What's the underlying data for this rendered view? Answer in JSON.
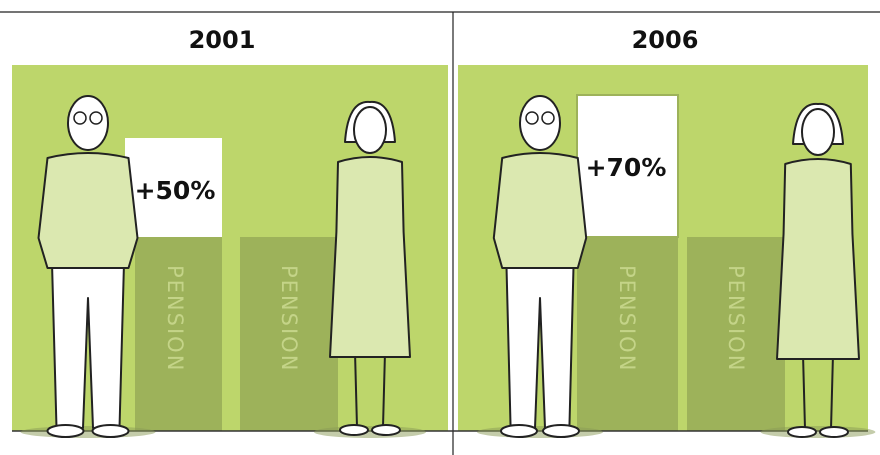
{
  "panels": [
    {
      "year": "2001",
      "increase_label": "+50%",
      "bar_labels": [
        "PENSION",
        "PENSION"
      ]
    },
    {
      "year": "2006",
      "increase_label": "+70%",
      "bar_labels": [
        "PENSION",
        "PENSION"
      ]
    }
  ]
}
